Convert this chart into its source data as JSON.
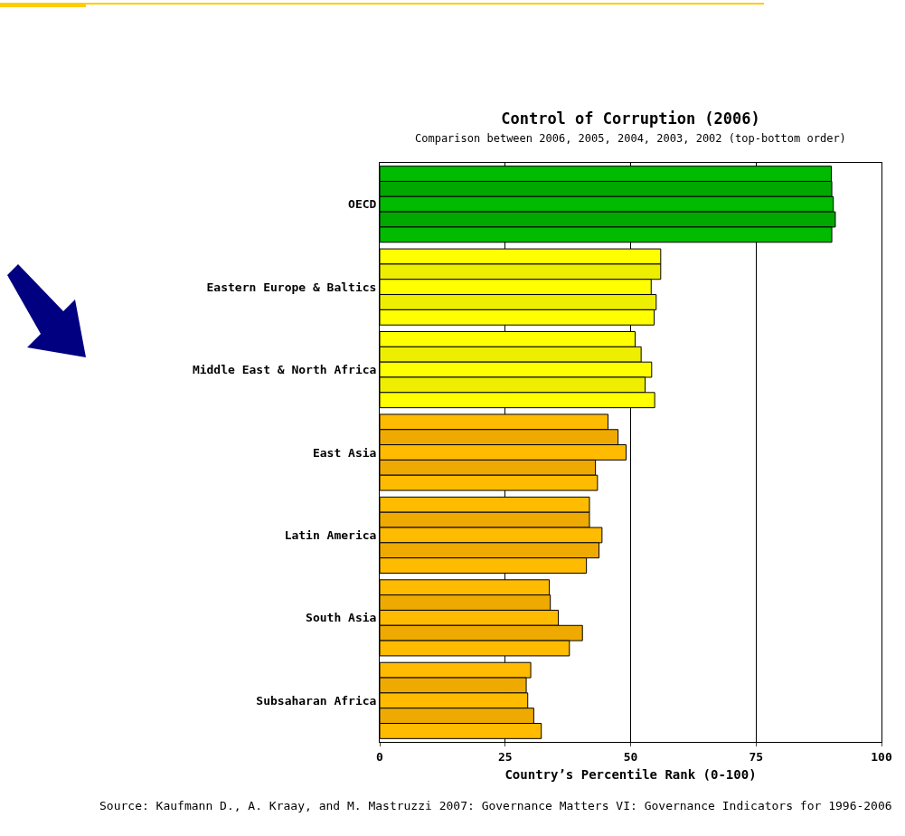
{
  "chart_data": {
    "type": "bar",
    "orientation": "horizontal",
    "title": "Control of Corruption (2006)",
    "subtitle": "Comparison between 2006, 2005, 2004, 2003, 2002 (top-bottom order)",
    "xlabel": "Country’s Percentile Rank (0-100)",
    "annotations": [
      "Source: Kaufmann D., A. Kraay, and M. Mastruzzi 2007: Governance Matters VI: Governance Indicators for 1996-2006"
    ],
    "categories": [
      "OECD",
      "Eastern Europe & Baltics",
      "Middle East & North Africa",
      "East Asia",
      "Latin America",
      "South Asia",
      "Subsaharan Africa"
    ],
    "series": [
      {
        "colors": [
          "#00bb00",
          "#ffff00",
          "#ffff00",
          "#ffbb00",
          "#ffbb00",
          "#ffbb00",
          "#ffbb00"
        ],
        "values": [
          90.0,
          56.0,
          50.9,
          45.5,
          41.8,
          33.8,
          30.1
        ]
      },
      {
        "colors": [
          "#00a800",
          "#eeee00",
          "#eeee00",
          "#eeaa00",
          "#eeaa00",
          "#eeaa00",
          "#eeaa00"
        ],
        "values": [
          90.1,
          56.0,
          52.1,
          47.5,
          41.8,
          34.0,
          29.2
        ]
      },
      {
        "colors": [
          "#00bb00",
          "#ffff00",
          "#ffff00",
          "#ffbb00",
          "#ffbb00",
          "#ffbb00",
          "#ffbb00"
        ],
        "values": [
          90.4,
          54.1,
          54.2,
          49.1,
          44.3,
          35.6,
          29.5
        ]
      },
      {
        "colors": [
          "#00a800",
          "#eeee00",
          "#eeee00",
          "#eeaa00",
          "#eeaa00",
          "#eeaa00",
          "#eeaa00"
        ],
        "values": [
          90.8,
          55.1,
          52.9,
          43.0,
          43.7,
          40.4,
          30.7
        ]
      },
      {
        "colors": [
          "#00bb00",
          "#ffff00",
          "#ffff00",
          "#ffbb00",
          "#ffbb00",
          "#ffbb00",
          "#ffbb00"
        ],
        "values": [
          90.1,
          54.7,
          54.8,
          43.4,
          41.2,
          37.8,
          32.2
        ]
      }
    ],
    "xlim": [
      0,
      100
    ],
    "xticks": [
      0,
      25,
      50,
      75,
      100
    ],
    "grid": "x"
  }
}
